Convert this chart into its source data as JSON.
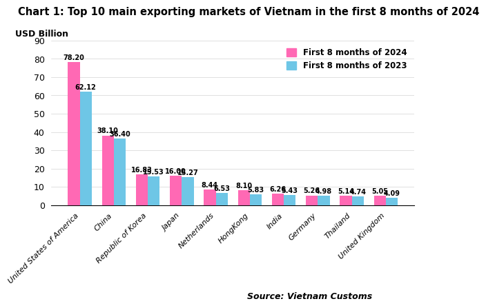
{
  "title": "Chart 1: Top 10 main exporting markets of Vietnam in the first 8 months of 2024",
  "ylabel": "USD Billion",
  "ylim": [
    0,
    90
  ],
  "yticks": [
    0,
    10,
    20,
    30,
    40,
    50,
    60,
    70,
    80,
    90
  ],
  "categories": [
    "United States of America",
    "China",
    "Republic of Korea",
    "Japan",
    "Netherlands",
    "HongKong",
    "India",
    "Germany",
    "Thailand",
    "United Kingdom"
  ],
  "values_2024": [
    78.2,
    38.1,
    16.83,
    16.0,
    8.44,
    8.1,
    6.26,
    5.26,
    5.14,
    5.05
  ],
  "values_2023": [
    62.12,
    36.4,
    15.53,
    15.27,
    6.53,
    5.83,
    5.43,
    4.98,
    4.74,
    4.09
  ],
  "color_2024": "#FF69B4",
  "color_2023": "#6EC6E6",
  "legend_2024": "First 8 months of 2024",
  "legend_2023": "First 8 months of 2023",
  "source": "Source: Vietnam Customs",
  "background_color": "#FFFFFF",
  "title_fontsize": 10.5,
  "label_fontsize": 7.0,
  "bar_width": 0.35
}
